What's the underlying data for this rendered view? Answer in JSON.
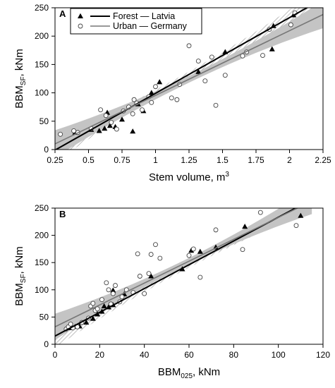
{
  "chart_data": [
    {
      "type": "scatter",
      "panel": "A",
      "xlabel": "Stem volume, m",
      "xlabel_sup": "3",
      "ylabel": "BBM",
      "ylabel_sub": "SF",
      "ylabel_suffix": ", kNm",
      "xlim": [
        0.25,
        2.25
      ],
      "ylim": [
        0,
        250
      ],
      "xticks": [
        0.25,
        0.5,
        0.75,
        1,
        1.25,
        1.5,
        1.75,
        2,
        2.25
      ],
      "xtick_labels": [
        "0.25",
        "0.5",
        "0.75",
        "1",
        "1.25",
        "1.5",
        "1.75",
        "2",
        "2.25"
      ],
      "yticks": [
        0,
        50,
        100,
        150,
        200,
        250
      ],
      "ytick_labels": [
        "0",
        "50",
        "100",
        "150",
        "200",
        "250"
      ],
      "grid": false,
      "legend": "top-left",
      "series": [
        {
          "name": "Forest — Latvia",
          "marker": "filled-triangle",
          "color": "#000000",
          "points": [
            [
              0.4,
              30
            ],
            [
              0.52,
              35
            ],
            [
              0.58,
              33
            ],
            [
              0.62,
              37
            ],
            [
              0.64,
              65
            ],
            [
              0.66,
              42
            ],
            [
              0.7,
              40
            ],
            [
              0.75,
              53
            ],
            [
              0.83,
              32
            ],
            [
              0.87,
              80
            ],
            [
              0.91,
              68
            ],
            [
              0.97,
              100
            ],
            [
              1.03,
              119
            ],
            [
              1.32,
              137
            ],
            [
              1.52,
              172
            ],
            [
              1.87,
              177
            ],
            [
              1.88,
              218
            ],
            [
              2.03,
              237
            ]
          ],
          "fit": {
            "x": [
              0.25,
              2.25
            ],
            "y": [
              -1,
              266
            ]
          }
        },
        {
          "name": "Urban — Germany",
          "marker": "open-circle",
          "color": "#444444",
          "points": [
            [
              0.29,
              27
            ],
            [
              0.39,
              33
            ],
            [
              0.42,
              30
            ],
            [
              0.52,
              37
            ],
            [
              0.59,
              70
            ],
            [
              0.63,
              60
            ],
            [
              0.67,
              48
            ],
            [
              0.71,
              36
            ],
            [
              0.76,
              68
            ],
            [
              0.8,
              75
            ],
            [
              0.83,
              63
            ],
            [
              0.84,
              88
            ],
            [
              0.86,
              82
            ],
            [
              0.9,
              70
            ],
            [
              0.95,
              93
            ],
            [
              0.97,
              83
            ],
            [
              1.0,
              111
            ],
            [
              1.12,
              91
            ],
            [
              1.16,
              88
            ],
            [
              1.18,
              115
            ],
            [
              1.25,
              183
            ],
            [
              1.32,
              156
            ],
            [
              1.37,
              121
            ],
            [
              1.42,
              163
            ],
            [
              1.45,
              78
            ],
            [
              1.52,
              131
            ],
            [
              1.65,
              165
            ],
            [
              1.68,
              172
            ],
            [
              1.8,
              166
            ],
            [
              1.85,
              212
            ],
            [
              2.01,
              220
            ],
            [
              2.04,
              241
            ]
          ],
          "fit": {
            "x": [
              0.25,
              2.25
            ],
            "y": [
              10,
              238
            ]
          }
        }
      ]
    },
    {
      "type": "scatter",
      "panel": "B",
      "xlabel": "BBM",
      "xlabel_sub": "025",
      "xlabel_suffix": ", kNm",
      "ylabel": "BBM",
      "ylabel_sub": "SF",
      "ylabel_suffix": ", kNm",
      "xlim": [
        0,
        120
      ],
      "ylim": [
        0,
        250
      ],
      "xticks": [
        0,
        20,
        40,
        60,
        80,
        100,
        120
      ],
      "xtick_labels": [
        "0",
        "20",
        "40",
        "60",
        "80",
        "100",
        "120"
      ],
      "yticks": [
        0,
        50,
        100,
        150,
        200,
        250
      ],
      "ytick_labels": [
        "0",
        "50",
        "100",
        "150",
        "200",
        "250"
      ],
      "grid": false,
      "series": [
        {
          "name": "Forest — Latvia",
          "marker": "filled-triangle",
          "color": "#000000",
          "points": [
            [
              7,
              30
            ],
            [
              9,
              32
            ],
            [
              11,
              33
            ],
            [
              14,
              40
            ],
            [
              17,
              47
            ],
            [
              19,
              55
            ],
            [
              21,
              60
            ],
            [
              22,
              70
            ],
            [
              24,
              68
            ],
            [
              26,
              72
            ],
            [
              26,
              99
            ],
            [
              31,
              92
            ],
            [
              43,
              125
            ],
            [
              57,
              138
            ],
            [
              61,
              172
            ],
            [
              65,
              170
            ],
            [
              72,
              178
            ],
            [
              85,
              216
            ],
            [
              110,
              236
            ]
          ],
          "fit": {
            "x": [
              0,
              115
            ],
            "y": [
              15,
              266
            ]
          }
        },
        {
          "name": "Urban — Germany",
          "marker": "open-circle",
          "color": "#444444",
          "points": [
            [
              5,
              28
            ],
            [
              6,
              32
            ],
            [
              7,
              37
            ],
            [
              8,
              30
            ],
            [
              10,
              32
            ],
            [
              12,
              40
            ],
            [
              15,
              48
            ],
            [
              16,
              70
            ],
            [
              17,
              75
            ],
            [
              18,
              62
            ],
            [
              19,
              65
            ],
            [
              21,
              82
            ],
            [
              23,
              113
            ],
            [
              24,
              100
            ],
            [
              25,
              74
            ],
            [
              26,
              93
            ],
            [
              27,
              108
            ],
            [
              29,
              78
            ],
            [
              30,
              87
            ],
            [
              32,
              100
            ],
            [
              35,
              95
            ],
            [
              37,
              166
            ],
            [
              38,
              125
            ],
            [
              40,
              93
            ],
            [
              42,
              130
            ],
            [
              43,
              165
            ],
            [
              45,
              183
            ],
            [
              47,
              158
            ],
            [
              60,
              163
            ],
            [
              62,
              175
            ],
            [
              65,
              123
            ],
            [
              72,
              210
            ],
            [
              84,
              174
            ],
            [
              92,
              242
            ],
            [
              108,
              218
            ]
          ],
          "fit": {
            "x": [
              0,
              115
            ],
            "y": [
              32,
              263
            ]
          }
        }
      ]
    }
  ]
}
